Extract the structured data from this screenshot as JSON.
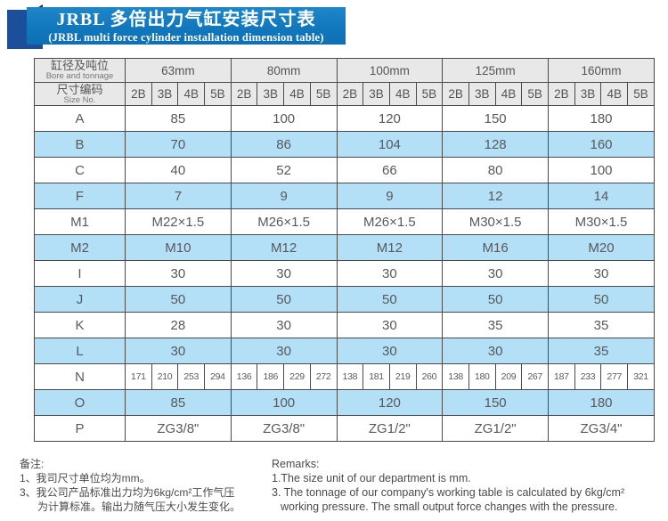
{
  "header": {
    "title_cn": "JRBL 多倍出力气缸安装尺寸表",
    "title_en": "(JRBL multi force cylinder installation dimension table)"
  },
  "table": {
    "corner_cn": "缸径及吨位",
    "corner_en": "Bore and tonnage",
    "size_no_cn": "尺寸编码",
    "size_no_en": "Size No.",
    "bore_groups": [
      "63mm",
      "80mm",
      "100mm",
      "125mm",
      "160mm"
    ],
    "sub_cols": [
      "2B",
      "3B",
      "4B",
      "5B"
    ],
    "rows": [
      {
        "label": "A",
        "type": "merged",
        "values": [
          "85",
          "100",
          "120",
          "150",
          "180"
        ]
      },
      {
        "label": "B",
        "type": "merged",
        "values": [
          "70",
          "86",
          "104",
          "128",
          "160"
        ]
      },
      {
        "label": "C",
        "type": "merged",
        "values": [
          "40",
          "52",
          "66",
          "80",
          "100"
        ]
      },
      {
        "label": "F",
        "type": "merged",
        "values": [
          "7",
          "9",
          "9",
          "12",
          "14"
        ]
      },
      {
        "label": "M1",
        "type": "merged",
        "values": [
          "M22×1.5",
          "M26×1.5",
          "M26×1.5",
          "M30×1.5",
          "M30×1.5"
        ]
      },
      {
        "label": "M2",
        "type": "merged",
        "values": [
          "M10",
          "M12",
          "M12",
          "M16",
          "M20"
        ]
      },
      {
        "label": "I",
        "type": "merged",
        "values": [
          "30",
          "30",
          "30",
          "30",
          "30"
        ]
      },
      {
        "label": "J",
        "type": "merged",
        "values": [
          "50",
          "50",
          "50",
          "50",
          "50"
        ]
      },
      {
        "label": "K",
        "type": "merged",
        "values": [
          "28",
          "30",
          "30",
          "35",
          "35"
        ]
      },
      {
        "label": "L",
        "type": "merged",
        "values": [
          "30",
          "30",
          "30",
          "30",
          "35"
        ]
      },
      {
        "label": "N",
        "type": "split",
        "values": [
          [
            "171",
            "210",
            "253",
            "294"
          ],
          [
            "136",
            "186",
            "229",
            "272"
          ],
          [
            "138",
            "181",
            "219",
            "260"
          ],
          [
            "138",
            "180",
            "209",
            "267"
          ],
          [
            "187",
            "233",
            "277",
            "321"
          ]
        ]
      },
      {
        "label": "O",
        "type": "merged",
        "values": [
          "85",
          "100",
          "120",
          "150",
          "180"
        ]
      },
      {
        "label": "P",
        "type": "merged",
        "values": [
          "ZG3/8\"",
          "ZG3/8\"",
          "ZG1/2\"",
          "ZG1/2\"",
          "ZG3/4\""
        ]
      }
    ]
  },
  "notes_cn": {
    "title": "备注:",
    "lines": [
      {
        "text": "1、我司尺寸单位均为mm。",
        "indent": false
      },
      {
        "text": "3、我公司产品标准出力均为6kg/cm²工作气压",
        "indent": false
      },
      {
        "text": "为计算标准。输出力随气压大小发生变化。",
        "indent": true
      }
    ]
  },
  "notes_en": {
    "title": "Remarks:",
    "lines": [
      {
        "text": "1.The size unit of our department is mm.",
        "indent": false
      },
      {
        "text": "3. The tonnage of our company's working table is calculated by 6kg/cm²",
        "indent": false
      },
      {
        "text": "working pressure. The small output force changes with the pressure.",
        "indent": true
      }
    ]
  },
  "colors": {
    "banner_blue": "#1178bd",
    "ribbon_blue": "#1b4f9c",
    "fold_navy": "#0d2f66",
    "row_highlight_blue": "#b3e0f7",
    "header_gray": "#e8e8e8",
    "table_border": "#4a4a4a",
    "table_text": "#58595b"
  }
}
